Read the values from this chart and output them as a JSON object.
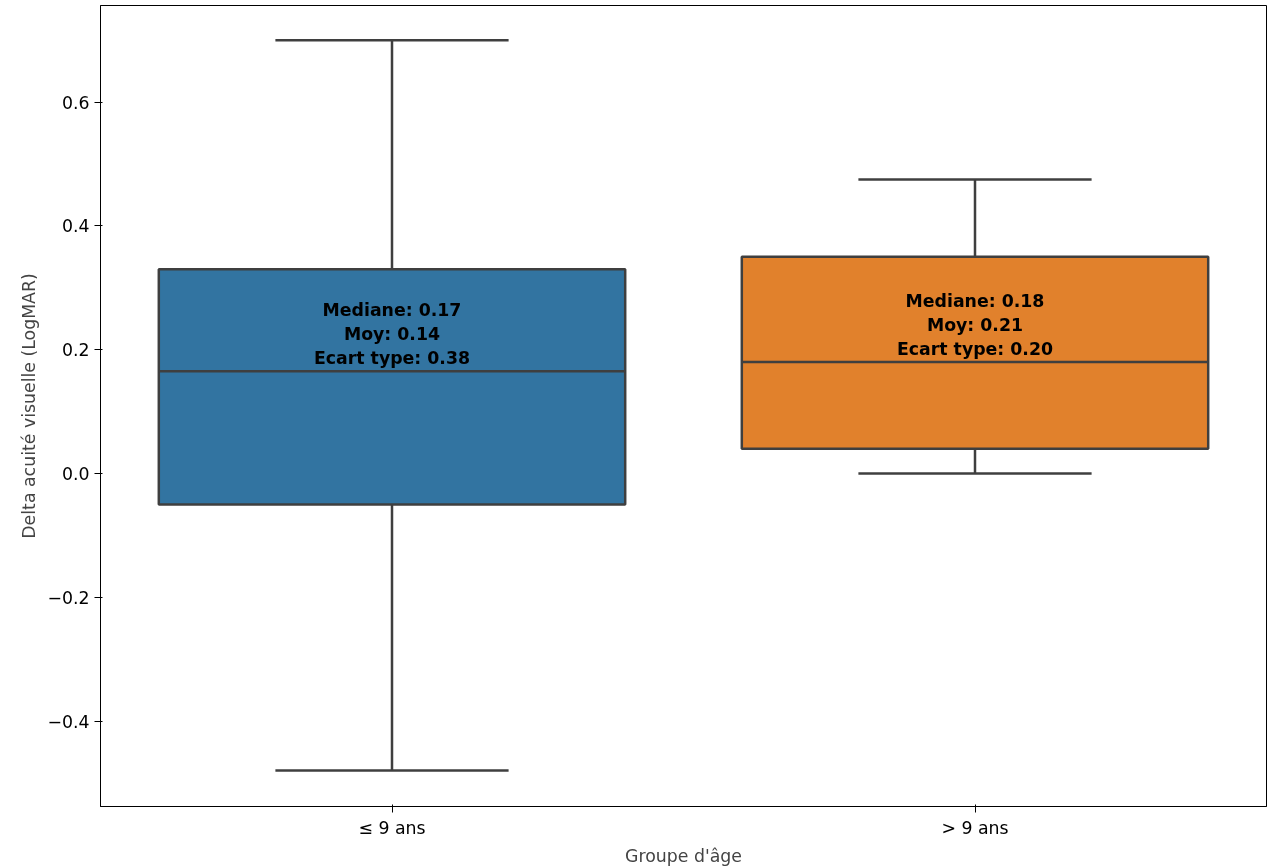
{
  "chart_data": {
    "type": "box",
    "xlabel": "Groupe d'âge",
    "ylabel": "Delta acuité visuelle (LogMAR)",
    "categories": [
      "≤ 9 ans",
      "> 9 ans"
    ],
    "colors": [
      "#3274a1",
      "#e1812c"
    ],
    "boxes": [
      {
        "low": -0.48,
        "q1": -0.05,
        "median": 0.165,
        "q3": 0.33,
        "high": 0.7
      },
      {
        "low": 0.0,
        "q1": 0.04,
        "median": 0.18,
        "q3": 0.35,
        "high": 0.475
      }
    ],
    "ylim": [
      -0.538,
      0.756
    ],
    "yticks": [
      {
        "value": -0.4,
        "label": "−0.4"
      },
      {
        "value": -0.2,
        "label": "−0.2"
      },
      {
        "value": 0,
        "label": "0.0"
      },
      0.2,
      0.4,
      0.6
    ],
    "annotations": [
      "Mediane: 0.17\nMoy: 0.14\nEcart type: 0.38",
      "Mediane: 0.18\nMoy: 0.21\nEcart type: 0.20"
    ],
    "grid": false
  }
}
